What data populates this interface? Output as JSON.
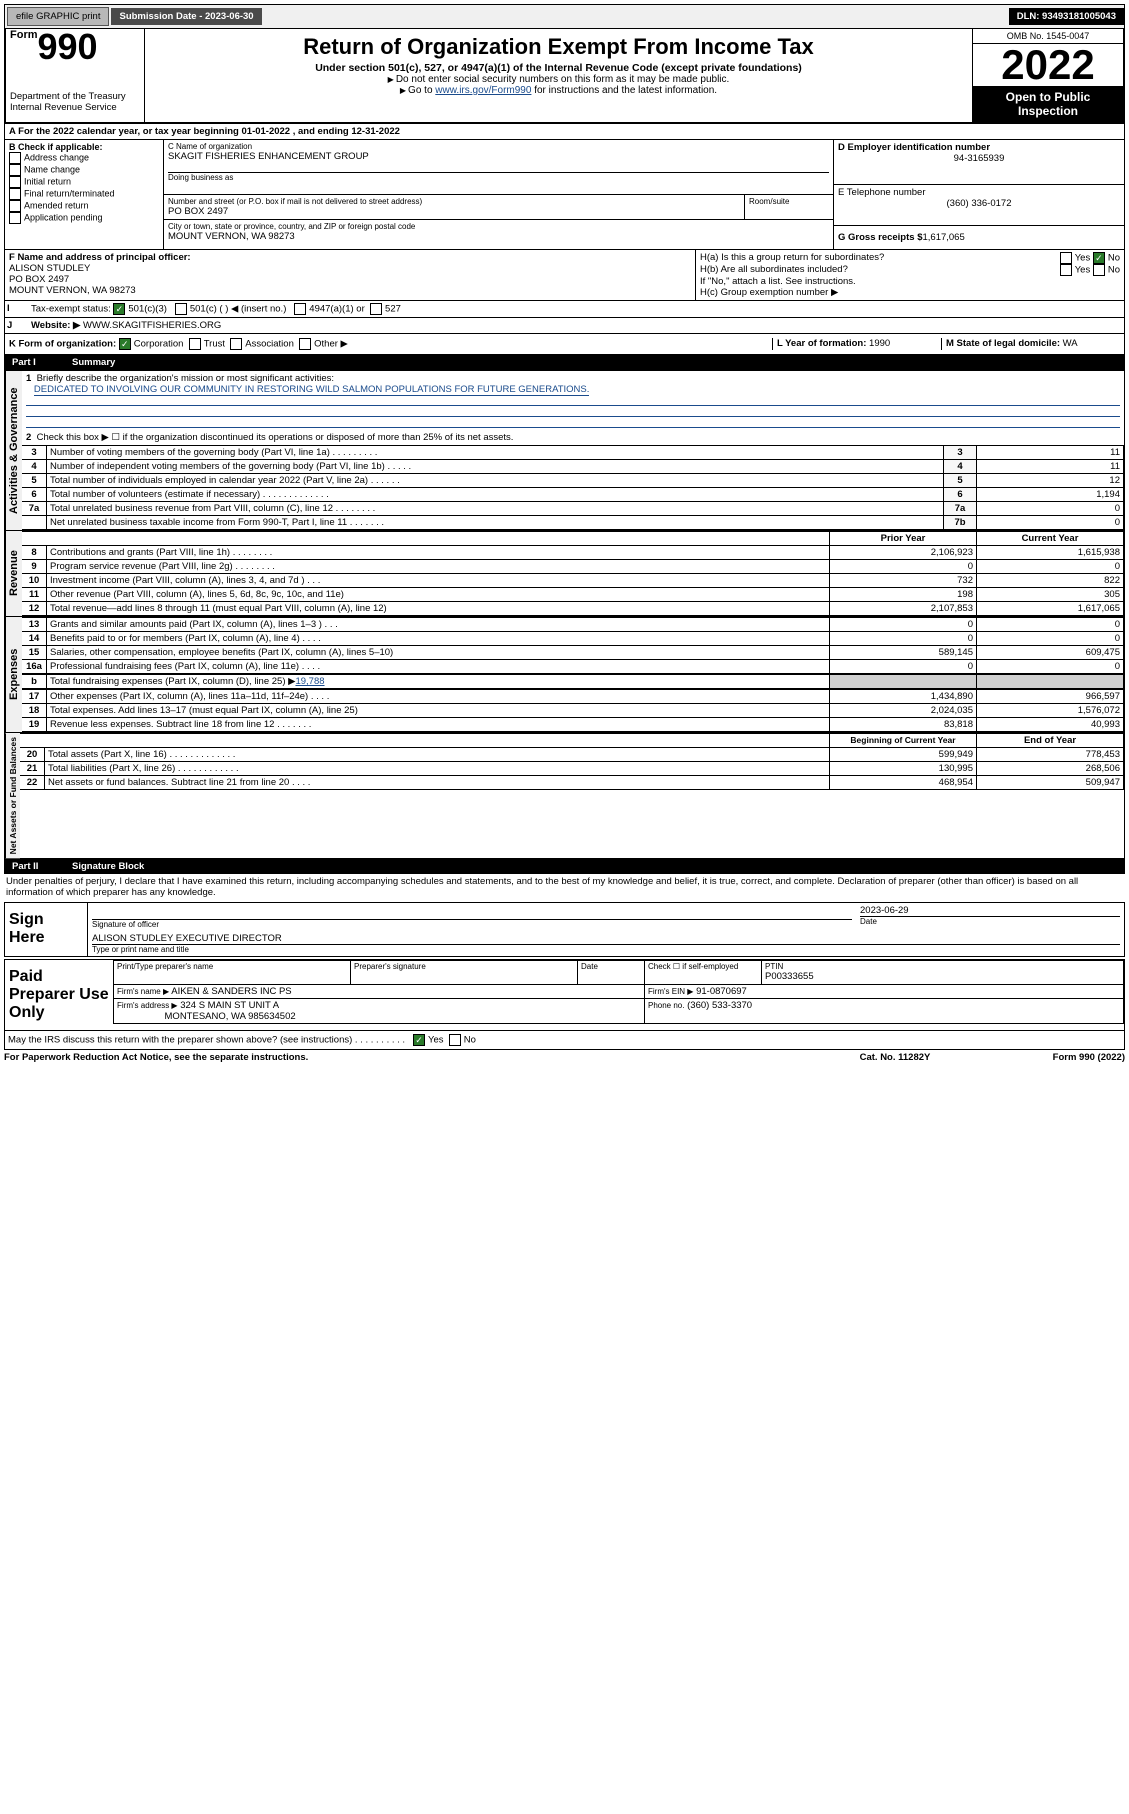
{
  "topbar": {
    "efile": "efile GRAPHIC print",
    "subdate_label": "Submission Date - 2023-06-30",
    "dln": "DLN: 93493181005043"
  },
  "header": {
    "form_prefix": "Form",
    "form_no": "990",
    "title": "Return of Organization Exempt From Income Tax",
    "subtitle": "Under section 501(c), 527, or 4947(a)(1) of the Internal Revenue Code (except private foundations)",
    "warn1": "Do not enter social security numbers on this form as it may be made public.",
    "warn2a": "Go to ",
    "warn2_link": "www.irs.gov/Form990",
    "warn2b": " for instructions and the latest information.",
    "dept": "Department of the Treasury",
    "irs": "Internal Revenue Service",
    "omb": "OMB No. 1545-0047",
    "year": "2022",
    "open": "Open to Public Inspection"
  },
  "A": {
    "prefix": "A For the 2022 calendar year, or tax year beginning ",
    "begin": "01-01-2022",
    "mid": " , and ending ",
    "end": "12-31-2022"
  },
  "B": {
    "label": "B Check if applicable:",
    "opts": [
      "Address change",
      "Name change",
      "Initial return",
      "Final return/terminated",
      "Amended return",
      "Application pending"
    ]
  },
  "C": {
    "name_label": "C Name of organization",
    "name": "SKAGIT FISHERIES ENHANCEMENT GROUP",
    "dba_label": "Doing business as",
    "addr_label": "Number and street (or P.O. box if mail is not delivered to street address)",
    "room_label": "Room/suite",
    "addr": "PO BOX 2497",
    "city_label": "City or town, state or province, country, and ZIP or foreign postal code",
    "city": "MOUNT VERNON, WA  98273"
  },
  "D": {
    "label": "D Employer identification number",
    "val": "94-3165939"
  },
  "E": {
    "label": "E Telephone number",
    "val": "(360) 336-0172"
  },
  "G": {
    "label": "G Gross receipts $",
    "val": "1,617,065"
  },
  "F": {
    "label": "F Name and address of principal officer:",
    "name": "ALISON STUDLEY",
    "addr1": "PO BOX 2497",
    "addr2": "MOUNT VERNON, WA  98273"
  },
  "H": {
    "a": "H(a)  Is this a group return for subordinates?",
    "b": "H(b)  Are all subordinates included?",
    "note": "If \"No,\" attach a list. See instructions.",
    "c": "H(c)  Group exemption number ▶",
    "yes": "Yes",
    "no": "No"
  },
  "I": {
    "label": "Tax-exempt status:",
    "c3": "501(c)(3)",
    "c": "501(c) (   ) ◀ (insert no.)",
    "a1": "4947(a)(1) or",
    "s527": "527"
  },
  "J": {
    "label": "Website: ▶",
    "val": "WWW.SKAGITFISHERIES.ORG"
  },
  "K": {
    "label": "K Form of organization:",
    "corp": "Corporation",
    "trust": "Trust",
    "assoc": "Association",
    "other": "Other ▶"
  },
  "L": {
    "label": "L Year of formation:",
    "val": "1990"
  },
  "M": {
    "label": "M State of legal domicile:",
    "val": "WA"
  },
  "part1": {
    "label": "Part I",
    "title": "Summary"
  },
  "summary": {
    "line1": "Briefly describe the organization's mission or most significant activities:",
    "mission": "DEDICATED TO INVOLVING OUR COMMUNITY IN RESTORING WILD SALMON POPULATIONS FOR FUTURE GENERATIONS.",
    "line2": "Check this box ▶ ☐  if the organization discontinued its operations or disposed of more than 25% of its net assets.",
    "rows_ag": [
      {
        "n": "3",
        "d": "Number of voting members of the governing body (Part VI, line 1a)   .    .    .    .    .    .    .    .    .",
        "lab": "3",
        "v": "11"
      },
      {
        "n": "4",
        "d": "Number of independent voting members of the governing body (Part VI, line 1b)  .    .    .    .    .",
        "lab": "4",
        "v": "11"
      },
      {
        "n": "5",
        "d": "Total number of individuals employed in calendar year 2022 (Part V, line 2a)   .    .    .    .    .    .",
        "lab": "5",
        "v": "12"
      },
      {
        "n": "6",
        "d": "Total number of volunteers (estimate if necessary)   .    .    .    .    .    .    .    .    .    .    .    .    .",
        "lab": "6",
        "v": "1,194"
      },
      {
        "n": "7a",
        "d": "Total unrelated business revenue from Part VIII, column (C), line 12  .    .    .    .    .    .    .    .",
        "lab": "7a",
        "v": "0"
      },
      {
        "n": "",
        "d": "Net unrelated business taxable income from Form 990-T, Part I, line 11   .    .    .    .    .    .    .",
        "lab": "7b",
        "v": "0"
      }
    ],
    "col_prior": "Prior Year",
    "col_curr": "Current Year",
    "rows_rev": [
      {
        "n": "8",
        "d": "Contributions and grants (Part VIII, line 1h)   .    .    .    .    .    .    .    .",
        "p": "2,106,923",
        "c": "1,615,938"
      },
      {
        "n": "9",
        "d": "Program service revenue (Part VIII, line 2g)   .    .    .    .    .    .    .    .",
        "p": "0",
        "c": "0"
      },
      {
        "n": "10",
        "d": "Investment income (Part VIII, column (A), lines 3, 4, and 7d )   .    .    .",
        "p": "732",
        "c": "822"
      },
      {
        "n": "11",
        "d": "Other revenue (Part VIII, column (A), lines 5, 6d, 8c, 9c, 10c, and 11e)",
        "p": "198",
        "c": "305"
      },
      {
        "n": "12",
        "d": "Total revenue—add lines 8 through 11 (must equal Part VIII, column (A), line 12)",
        "p": "2,107,853",
        "c": "1,617,065"
      }
    ],
    "rows_exp": [
      {
        "n": "13",
        "d": "Grants and similar amounts paid (Part IX, column (A), lines 1–3 )   .    .    .",
        "p": "0",
        "c": "0"
      },
      {
        "n": "14",
        "d": "Benefits paid to or for members (Part IX, column (A), line 4)  .    .    .    .",
        "p": "0",
        "c": "0"
      },
      {
        "n": "15",
        "d": "Salaries, other compensation, employee benefits (Part IX, column (A), lines 5–10)",
        "p": "589,145",
        "c": "609,475"
      },
      {
        "n": "16a",
        "d": "Professional fundraising fees (Part IX, column (A), line 11e)   .    .    .    .",
        "p": "0",
        "c": "0"
      }
    ],
    "line_b": "Total fundraising expenses (Part IX, column (D), line 25) ▶",
    "line_b_val": "19,788",
    "rows_exp2": [
      {
        "n": "17",
        "d": "Other expenses (Part IX, column (A), lines 11a–11d, 11f–24e)  .    .    .    .",
        "p": "1,434,890",
        "c": "966,597"
      },
      {
        "n": "18",
        "d": "Total expenses. Add lines 13–17 (must equal Part IX, column (A), line 25)",
        "p": "2,024,035",
        "c": "1,576,072"
      },
      {
        "n": "19",
        "d": "Revenue less expenses. Subtract line 18 from line 12   .    .    .    .    .    .    .",
        "p": "83,818",
        "c": "40,993"
      }
    ],
    "col_beg": "Beginning of Current Year",
    "col_end": "End of Year",
    "rows_na": [
      {
        "n": "20",
        "d": "Total assets (Part X, line 16)  .    .    .    .    .    .    .    .    .    .    .    .    .",
        "p": "599,949",
        "c": "778,453"
      },
      {
        "n": "21",
        "d": "Total liabilities (Part X, line 26)   .    .    .    .    .    .    .    .    .    .    .    .",
        "p": "130,995",
        "c": "268,506"
      },
      {
        "n": "22",
        "d": "Net assets or fund balances. Subtract line 21 from line 20   .    .    .    .",
        "p": "468,954",
        "c": "509,947"
      }
    ]
  },
  "verts": {
    "ag": "Activities & Governance",
    "rev": "Revenue",
    "exp": "Expenses",
    "na": "Net Assets or Fund Balances"
  },
  "part2": {
    "label": "Part II",
    "title": "Signature Block"
  },
  "sig": {
    "penalties": "Under penalties of perjury, I declare that I have examined this return, including accompanying schedules and statements, and to the best of my knowledge and belief, it is true, correct, and complete. Declaration of preparer (other than officer) is based on all information of which preparer has any knowledge.",
    "sign_here": "Sign Here",
    "sig_officer": "Signature of officer",
    "date_label": "Date",
    "date": "2023-06-29",
    "officer": "ALISON STUDLEY  EXECUTIVE DIRECTOR",
    "type_name": "Type or print name and title",
    "paid": "Paid Preparer Use Only",
    "prep_name_label": "Print/Type preparer's name",
    "prep_sig_label": "Preparer's signature",
    "check_self": "Check ☐ if self-employed",
    "ptin_label": "PTIN",
    "ptin": "P00333655",
    "firm_name_label": "Firm's name   ▶",
    "firm_name": "AIKEN & SANDERS INC PS",
    "firm_ein_label": "Firm's EIN ▶",
    "firm_ein": "91-0870697",
    "firm_addr_label": "Firm's address ▶",
    "firm_addr1": "324 S MAIN ST UNIT A",
    "firm_addr2": "MONTESANO, WA  985634502",
    "phone_label": "Phone no.",
    "phone": "(360) 533-3370",
    "discuss": "May the IRS discuss this return with the preparer shown above? (see instructions)    .    .    .    .    .    .    .    .    .    .",
    "yes": "Yes",
    "no": "No"
  },
  "footer": {
    "pra": "For Paperwork Reduction Act Notice, see the separate instructions.",
    "cat": "Cat. No. 11282Y",
    "form": "Form 990 (2022)"
  }
}
